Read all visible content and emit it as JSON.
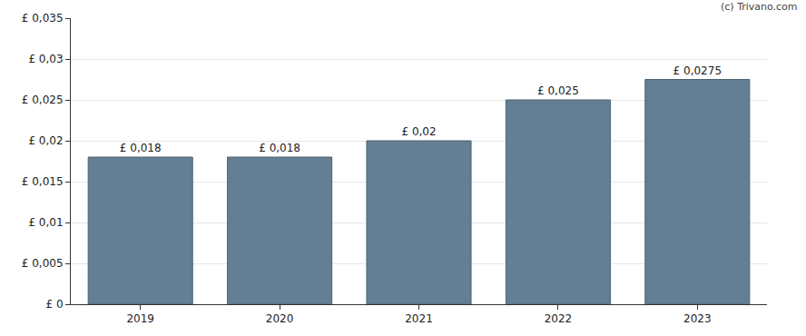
{
  "chart_data": {
    "type": "bar",
    "categories": [
      "2019",
      "2020",
      "2021",
      "2022",
      "2023"
    ],
    "values": [
      0.018,
      0.018,
      0.02,
      0.025,
      0.0275
    ],
    "value_labels": [
      "£ 0,018",
      "£ 0,018",
      "£ 0,02",
      "£ 0,025",
      "£ 0,0275"
    ],
    "data_labels": true,
    "color": "#647f93",
    "ylim": [
      0,
      0.035
    ],
    "yticks": [
      {
        "value": 0,
        "label": "£ 0"
      },
      {
        "value": 0.005,
        "label": "£ 0,005"
      },
      {
        "value": 0.01,
        "label": "£ 0,01"
      },
      {
        "value": 0.015,
        "label": "£ 0,015"
      },
      {
        "value": 0.02,
        "label": "£ 0,02"
      },
      {
        "value": 0.025,
        "label": "£ 0,025"
      },
      {
        "value": 0.03,
        "label": "£ 0,03"
      },
      {
        "value": 0.035,
        "label": "£ 0,035"
      }
    ],
    "grid": true,
    "annotations": [
      "(c) Trivano.com"
    ]
  }
}
